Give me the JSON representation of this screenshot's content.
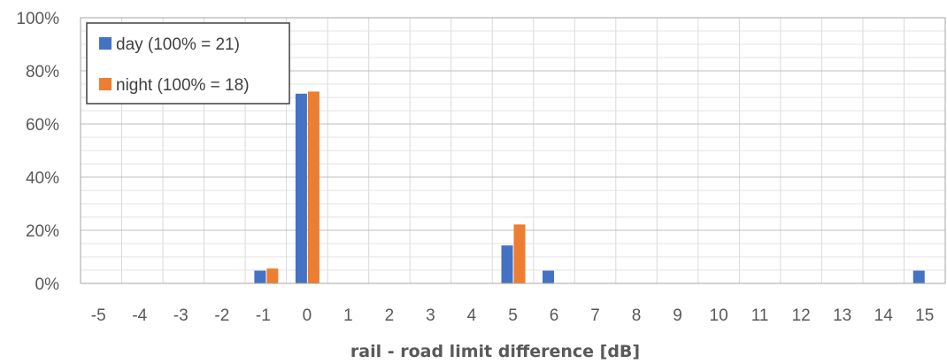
{
  "chart_data": {
    "type": "bar",
    "title": "",
    "xlabel": "rail - road limit difference [dB]",
    "ylabel": "",
    "categories": [
      "-5",
      "-4",
      "-3",
      "-2",
      "-1",
      "0",
      "1",
      "2",
      "3",
      "4",
      "5",
      "6",
      "7",
      "8",
      "9",
      "10",
      "11",
      "12",
      "13",
      "14",
      "15"
    ],
    "ylim": [
      0,
      100
    ],
    "yticks": [
      "0%",
      "20%",
      "40%",
      "60%",
      "80%",
      "100%"
    ],
    "grid": true,
    "legend_position": "top-left",
    "series": [
      {
        "name": "day (100% = 21)",
        "color": "#4472C4",
        "values": [
          0,
          0,
          0,
          0,
          4.8,
          71.4,
          0,
          0,
          0,
          0,
          14.3,
          4.8,
          0,
          0,
          0,
          0,
          0,
          0,
          0,
          0,
          4.8
        ]
      },
      {
        "name": "night (100% = 18)",
        "color": "#ED7D31",
        "values": [
          0,
          0,
          0,
          0,
          5.6,
          72.2,
          0,
          0,
          0,
          0,
          22.2,
          0,
          0,
          0,
          0,
          0,
          0,
          0,
          0,
          0,
          0
        ]
      }
    ]
  }
}
